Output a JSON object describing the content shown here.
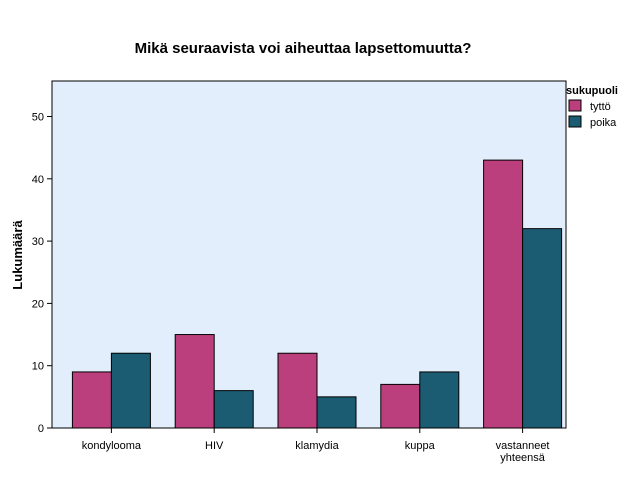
{
  "chart_data": {
    "type": "bar",
    "title": "Mikä seuraavista voi aiheuttaa lapsettomuutta?",
    "xlabel": "",
    "ylabel": "Lukumäärä",
    "ylim": [
      0,
      55
    ],
    "yticks": [
      "0",
      "10",
      "20",
      "30",
      "40",
      "50"
    ],
    "categories": [
      [
        "kondylooma"
      ],
      [
        "HIV"
      ],
      [
        "klamydia"
      ],
      [
        "kuppa"
      ],
      [
        "vastanneet",
        "yhteensä"
      ]
    ],
    "legend": {
      "title": "sukupuoli",
      "placement": "top-right, outside plot"
    },
    "series": [
      {
        "name": "tyttö",
        "color": "#bc3f7d",
        "values": [
          9,
          15,
          12,
          7,
          43
        ]
      },
      {
        "name": "poika",
        "color": "#1b5c73",
        "values": [
          12,
          6,
          5,
          9,
          32
        ]
      }
    ],
    "plot_background": "#e2eefb",
    "grid": false
  }
}
